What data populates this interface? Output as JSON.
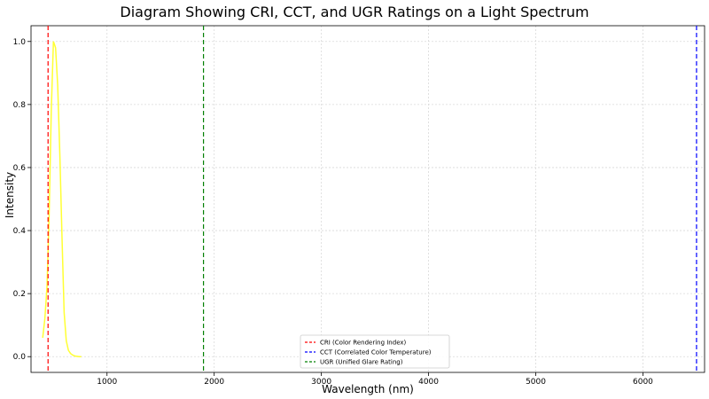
{
  "chart_data": {
    "type": "line",
    "title": "Diagram Showing CRI, CCT, and UGR Ratings on a Light Spectrum",
    "xlabel": "Wavelength (nm)",
    "ylabel": "Intensity",
    "xlim": [
      291,
      6575
    ],
    "ylim": [
      -0.05,
      1.05
    ],
    "xticks": [
      1000,
      2000,
      3000,
      4000,
      5000,
      6000
    ],
    "yticks": [
      0.0,
      0.2,
      0.4,
      0.6,
      0.8,
      1.0
    ],
    "xtick_labels": [
      "1000",
      "2000",
      "3000",
      "4000",
      "5000",
      "6000"
    ],
    "ytick_labels": [
      "0.0",
      "0.2",
      "0.4",
      "0.6",
      "0.8",
      "1.0"
    ],
    "grid": true,
    "legend_position": "bottom-center",
    "spectrum": {
      "color": "#ffff33",
      "x": [
        400,
        420,
        440,
        460,
        480,
        500,
        520,
        540,
        560,
        580,
        600,
        620,
        640,
        660,
        680,
        700,
        720,
        740,
        760
      ],
      "y": [
        0.06,
        0.12,
        0.22,
        0.45,
        0.78,
        1.0,
        0.98,
        0.86,
        0.64,
        0.38,
        0.14,
        0.05,
        0.02,
        0.01,
        0.005,
        0.002,
        0.001,
        0.0,
        0.0
      ]
    },
    "vlines": [
      {
        "name": "CRI (Color Rendering Index)",
        "x": 450,
        "color": "#ff0000",
        "style": "dashed"
      },
      {
        "name": "CCT (Correlated Color Temperature)",
        "x": 6500,
        "color": "#0000ff",
        "style": "dashed"
      },
      {
        "name": "UGR (Unified Glare Rating)",
        "x": 1900,
        "color": "#008000",
        "style": "dashed"
      }
    ]
  }
}
